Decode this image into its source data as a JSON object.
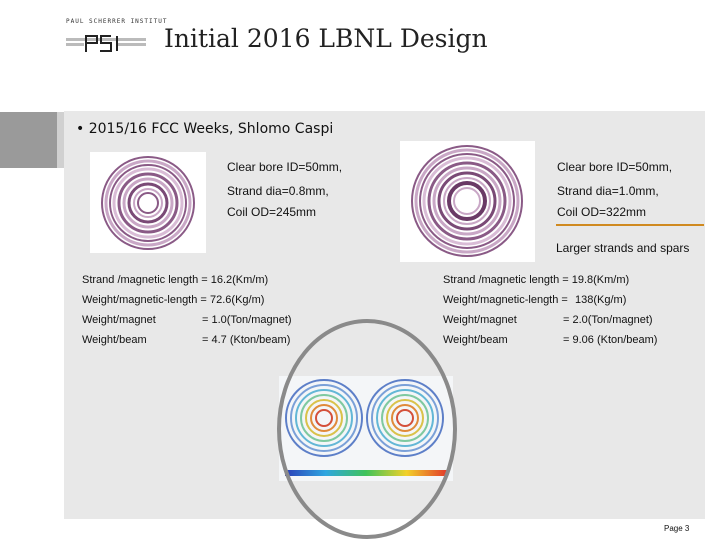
{
  "header": {
    "logo_text": "PAUL SCHERRER INSTITUT",
    "logo_mark": "PSI",
    "title": "Initial 2016 LBNL Design"
  },
  "bullet": "• 2015/16 FCC Weeks, Shlomo Caspi",
  "left_design": {
    "bore": "Clear bore  ID=50mm,",
    "strand": "Strand dia=0.8mm,",
    "coil": "Coil OD=245mm",
    "strand_length": "Strand /magnetic length = 16.2(Km/m)",
    "weight_length_label": "Weight/magnetic-length = ",
    "weight_length_value": "72.6(Kg/m)",
    "weight_magnet_label": "Weight/magnet",
    "weight_magnet_value": "= 1.0(Ton/magnet)",
    "weight_beam_label": "Weight/beam",
    "weight_beam_value": "= 4.7 (Kton/beam)"
  },
  "right_design": {
    "bore": "Clear bore  ID=50mm,",
    "strand": "Strand dia=1.0mm,",
    "coil": "Coil OD=322mm",
    "note": "Larger strands and spars",
    "strand_length": "Strand /magnetic length = 19.8(Km/m)",
    "weight_length_label": "Weight/magnetic-length = ",
    "weight_length_value": "138(Kg/m)",
    "weight_magnet_label": "Weight/magnet",
    "weight_magnet_value": "= 2.0(Ton/magnet)",
    "weight_beam_label": "Weight/beam",
    "weight_beam_value": "= 9.06 (Kton/beam)"
  },
  "footer": {
    "page": "Page 3"
  },
  "colors": {
    "panel": "#e8e8e8",
    "coil_purple": "#8a5a86",
    "coil_light": "#c9a7c6",
    "arrow": "#d08a20"
  }
}
